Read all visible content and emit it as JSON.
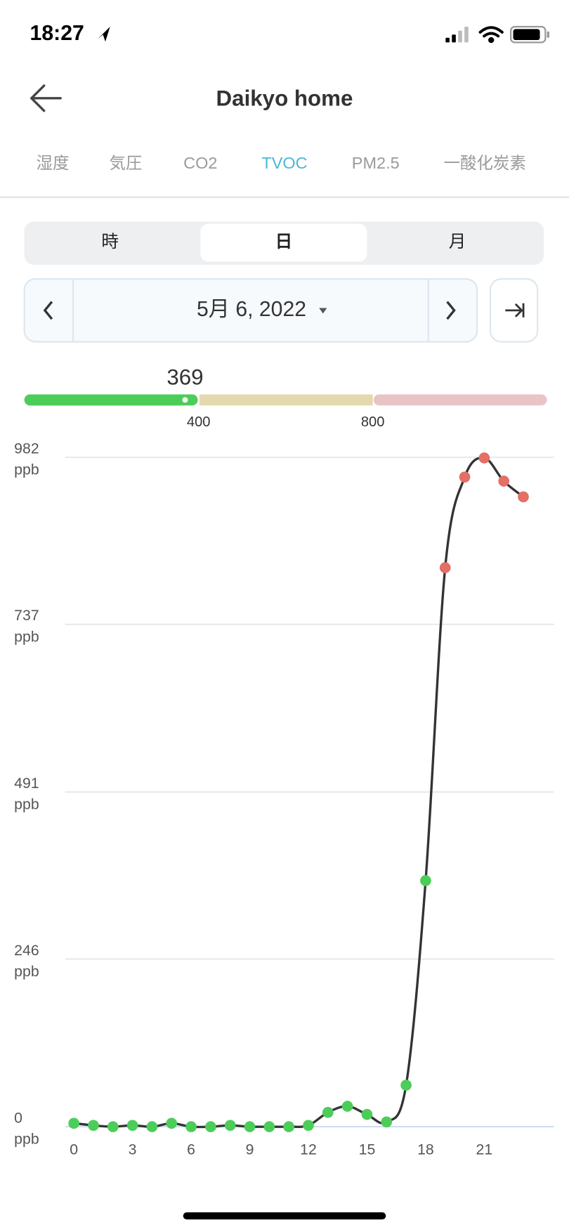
{
  "status": {
    "time": "18:27"
  },
  "header": {
    "title": "Daikyo home"
  },
  "tabs": {
    "items": [
      "湿度",
      "気圧",
      "CO2",
      "TVOC",
      "PM2.5",
      "一酸化炭素"
    ],
    "active": 3
  },
  "segments": {
    "items": [
      "時",
      "日",
      "月"
    ],
    "active": 1
  },
  "date": "5月 6, 2022",
  "gauge": {
    "value": 369,
    "lim": [
      0,
      1200
    ],
    "ticks": [
      400,
      800
    ],
    "colors": [
      "#4ccd59",
      "#e4d9ae",
      "#e8c5c4"
    ]
  },
  "chart_data": {
    "type": "line",
    "x": [
      0,
      1,
      2,
      3,
      4,
      5,
      6,
      7,
      8,
      9,
      10,
      11,
      12,
      13,
      14,
      15,
      16,
      17,
      18,
      19,
      20,
      21,
      22,
      23
    ],
    "series": [
      {
        "name": "TVOC",
        "color": "#333333",
        "values": [
          5,
          2,
          0,
          2,
          0,
          5,
          0,
          0,
          2,
          0,
          0,
          0,
          2,
          21,
          30,
          18,
          7,
          61,
          361,
          820,
          953,
          981,
          947,
          924
        ]
      }
    ],
    "point_colors": [
      "#4ccd59",
      "#e4d9ae",
      "#e36f66"
    ],
    "xlim": [
      -0.44,
      24.57
    ],
    "xticks": [
      0,
      3,
      6,
      9,
      12,
      15,
      18,
      21
    ],
    "ylim": [
      0,
      982
    ],
    "yticks": [
      0,
      246,
      491,
      737,
      982
    ],
    "y_unit": "ppb",
    "grid": true
  }
}
